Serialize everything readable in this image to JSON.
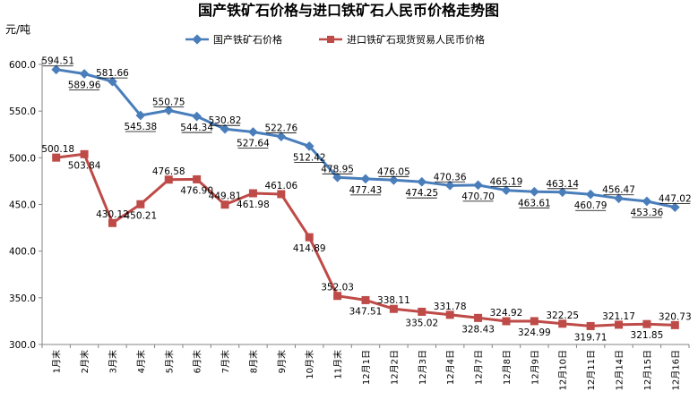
{
  "chart_data": {
    "type": "line",
    "title": "国产铁矿石价格与进口铁矿石人民币价格走势图",
    "ylabel": "元/吨",
    "xlabel": "",
    "ylim": [
      300,
      600
    ],
    "yticks": [
      "600.0",
      "550.0",
      "500.0",
      "450.0",
      "400.0",
      "350.0",
      "300.0"
    ],
    "grid": false,
    "legend_position": "top",
    "categories": [
      "1月末",
      "2月末",
      "3月末",
      "4月末",
      "5月末",
      "6月末",
      "7月末",
      "8月末",
      "9月末",
      "10月末",
      "11月末",
      "12月1日",
      "12月2日",
      "12月3日",
      "12月4日",
      "12月7日",
      "12月8日",
      "12月9日",
      "12月10日",
      "12月11日",
      "12月14日",
      "12月15日",
      "12月16日"
    ],
    "series": [
      {
        "name": "国产铁矿石价格",
        "color": "#4a7ebb",
        "marker": "diamond",
        "values": [
          594.51,
          589.96,
          581.66,
          545.38,
          550.75,
          544.34,
          530.82,
          527.64,
          522.76,
          512.42,
          478.95,
          477.43,
          476.05,
          474.25,
          470.36,
          470.7,
          465.19,
          463.61,
          463.14,
          460.79,
          456.47,
          453.36,
          447.02
        ],
        "labels": [
          "594.51",
          "589.96",
          "581.66",
          "545.38",
          "550.75",
          "544.34",
          "530.82",
          "527.64",
          "522.76",
          "512.42",
          "478.95",
          "477.43",
          "476.05",
          "474.25",
          "470.36",
          "470.70",
          "465.19",
          "463.61",
          "463.14",
          "460.79",
          "456.47",
          "453.36",
          "447.02"
        ]
      },
      {
        "name": "进口铁矿石现货贸易人民币价格",
        "color": "#be4b48",
        "marker": "square",
        "values": [
          500.18,
          503.84,
          430.12,
          450.21,
          476.58,
          476.9,
          449.81,
          461.98,
          461.06,
          414.89,
          352.03,
          347.51,
          338.11,
          335.02,
          331.78,
          328.43,
          324.92,
          324.99,
          322.25,
          319.71,
          321.17,
          321.85,
          320.73
        ],
        "labels": [
          "500.18",
          "503.84",
          "430.12",
          "450.21",
          "476.58",
          "476.90",
          "449.81",
          "461.98",
          "461.06",
          "414.89",
          "352.03",
          "347.51",
          "338.11",
          "335.02",
          "331.78",
          "328.43",
          "324.92",
          "324.99",
          "322.25",
          "319.71",
          "321.17",
          "321.85",
          "320.73"
        ]
      }
    ]
  }
}
